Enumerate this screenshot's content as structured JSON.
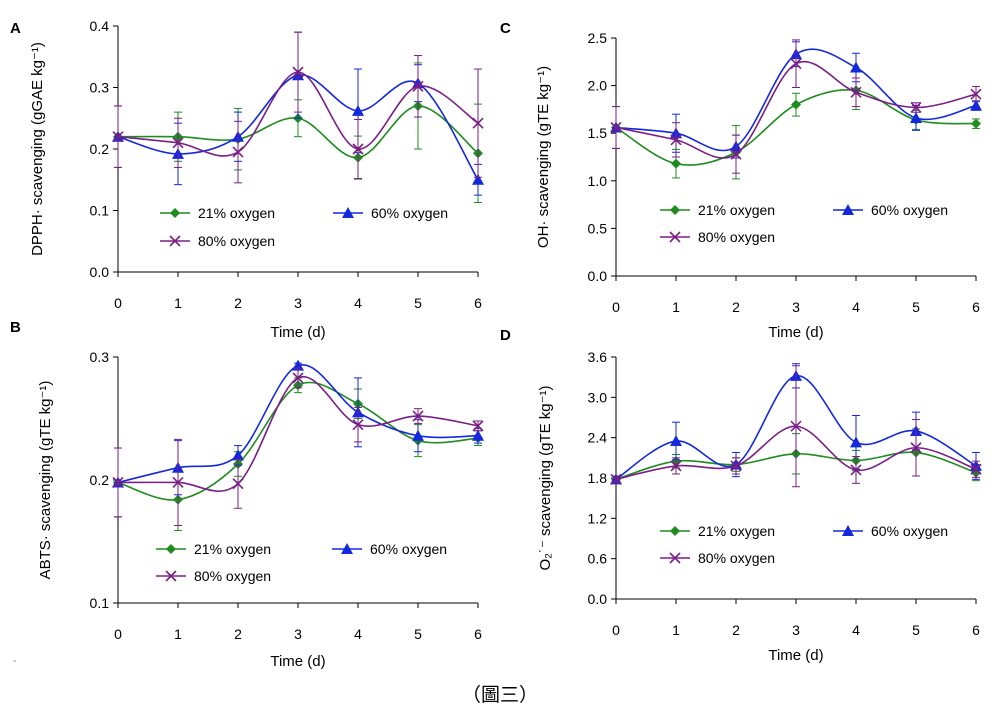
{
  "figure": {
    "caption": "（圖三）",
    "edge_mark": "-"
  },
  "chart_data": [
    {
      "panel": "A",
      "type": "line",
      "x": [
        0,
        1,
        2,
        3,
        4,
        5,
        6
      ],
      "xlabel": "Time (d)",
      "ylabel": "DPPH· scavenging (gGAE kg⁻¹)",
      "ylim": [
        0,
        0.4
      ],
      "yticks": [
        "0.0",
        "0.1",
        "0.2",
        "0.3",
        "0.4"
      ],
      "series": [
        {
          "name": "21% oxygen",
          "color": "#1e8c1e",
          "marker": "diamond",
          "values": [
            0.22,
            0.22,
            0.216,
            0.25,
            0.186,
            0.27,
            0.193
          ],
          "errors": [
            0.05,
            0.04,
            0.05,
            0.03,
            0.035,
            0.07,
            0.08
          ]
        },
        {
          "name": "60% oxygen",
          "color": "#1428dc",
          "marker": "triangle",
          "values": [
            0.22,
            0.192,
            0.22,
            0.32,
            0.262,
            0.307,
            0.15
          ],
          "errors": [
            0.05,
            0.05,
            0.04,
            0.07,
            0.068,
            0.03,
            0.025
          ]
        },
        {
          "name": "80% oxygen",
          "color": "#7a1f86",
          "marker": "x",
          "values": [
            0.22,
            0.21,
            0.195,
            0.325,
            0.2,
            0.302,
            0.242
          ],
          "errors": [
            0.05,
            0.04,
            0.05,
            0.065,
            0.048,
            0.05,
            0.088
          ]
        }
      ]
    },
    {
      "panel": "B",
      "type": "line",
      "x": [
        0,
        1,
        2,
        3,
        4,
        5,
        6
      ],
      "xlabel": "Time (d)",
      "ylabel": "ABTS· scavenging (gTE kg⁻¹)",
      "ylim": [
        0.1,
        0.3
      ],
      "yticks": [
        "0.1",
        "0.2",
        "0.3"
      ],
      "series": [
        {
          "name": "21% oxygen",
          "color": "#1e8c1e",
          "marker": "diamond",
          "values": [
            0.198,
            0.184,
            0.213,
            0.277,
            0.262,
            0.232,
            0.234
          ],
          "errors": [
            0.028,
            0.025,
            0.01,
            0.006,
            0.012,
            0.013,
            0.006
          ]
        },
        {
          "name": "60% oxygen",
          "color": "#1428dc",
          "marker": "triangle",
          "values": [
            0.198,
            0.21,
            0.22,
            0.293,
            0.255,
            0.236,
            0.236
          ],
          "errors": [
            0.028,
            0.022,
            0.008,
            0.002,
            0.028,
            0.013,
            0.006
          ]
        },
        {
          "name": "80% oxygen",
          "color": "#7a1f86",
          "marker": "x",
          "values": [
            0.198,
            0.198,
            0.197,
            0.283,
            0.245,
            0.252,
            0.244
          ],
          "errors": [
            0.028,
            0.035,
            0.02,
            0.008,
            0.014,
            0.006,
            0.004
          ]
        }
      ]
    },
    {
      "panel": "C",
      "type": "line",
      "x": [
        0,
        1,
        2,
        3,
        4,
        5,
        6
      ],
      "xlabel": "Time (d)",
      "ylabel": "OH· scavenging (gTE kg⁻¹)",
      "ylim": [
        0,
        2.5
      ],
      "yticks": [
        "0.0",
        "0.5",
        "1.0",
        "1.5",
        "2.0",
        "2.5"
      ],
      "series": [
        {
          "name": "21% oxygen",
          "color": "#1e8c1e",
          "marker": "diamond",
          "values": [
            1.56,
            1.18,
            1.3,
            1.8,
            1.95,
            1.64,
            1.6
          ],
          "errors": [
            0.22,
            0.15,
            0.28,
            0.12,
            0.2,
            0.1,
            0.05
          ]
        },
        {
          "name": "60% oxygen",
          "color": "#1428dc",
          "marker": "triangle",
          "values": [
            1.56,
            1.5,
            1.36,
            2.33,
            2.19,
            1.66,
            1.79
          ],
          "errors": [
            0.22,
            0.2,
            0.12,
            0.13,
            0.15,
            0.13,
            0.05
          ]
        },
        {
          "name": "80% oxygen",
          "color": "#7a1f86",
          "marker": "x",
          "values": [
            1.56,
            1.43,
            1.28,
            2.23,
            1.93,
            1.77,
            1.91
          ],
          "errors": [
            0.22,
            0.18,
            0.2,
            0.25,
            0.15,
            0.05,
            0.08
          ]
        }
      ]
    },
    {
      "panel": "D",
      "type": "line",
      "x": [
        0,
        1,
        2,
        3,
        4,
        5,
        6
      ],
      "xlabel": "Time (d)",
      "ylabel": "O₂˙⁻ scavenging (gTE kg⁻¹)",
      "ylim": [
        0,
        3.6
      ],
      "yticks": [
        "0.0",
        "0.6",
        "1.2",
        "1.8",
        "2.4",
        "3.0",
        "3.6"
      ],
      "series": [
        {
          "name": "21% oxygen",
          "color": "#1e8c1e",
          "marker": "diamond",
          "values": [
            1.78,
            2.05,
            2.0,
            2.16,
            2.06,
            2.18,
            1.88
          ],
          "errors": [
            0.05,
            0.1,
            0.1,
            0.3,
            0.15,
            0.35,
            0.12
          ]
        },
        {
          "name": "60% oxygen",
          "color": "#1428dc",
          "marker": "triangle",
          "values": [
            1.78,
            2.35,
            2.0,
            3.32,
            2.33,
            2.5,
            1.98
          ],
          "errors": [
            0.05,
            0.28,
            0.18,
            0.18,
            0.4,
            0.28,
            0.2
          ]
        },
        {
          "name": "80% oxygen",
          "color": "#7a1f86",
          "marker": "x",
          "values": [
            1.78,
            1.98,
            1.98,
            2.57,
            1.92,
            2.25,
            1.93
          ],
          "errors": [
            0.05,
            0.12,
            0.12,
            0.9,
            0.2,
            0.42,
            0.12
          ]
        }
      ]
    }
  ]
}
